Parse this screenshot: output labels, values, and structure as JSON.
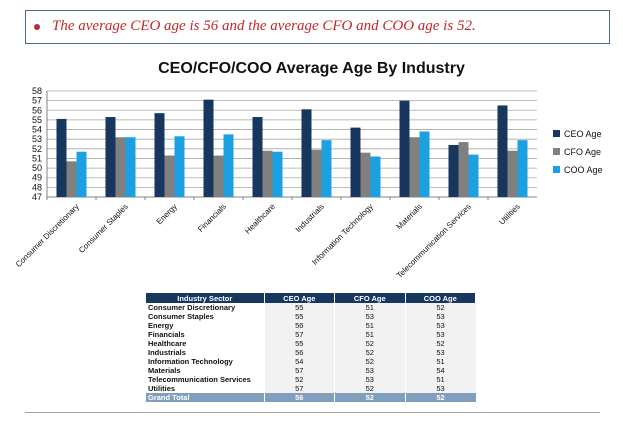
{
  "callout": {
    "text": "The average CEO age is 56 and the average CFO and COO age is 52."
  },
  "chart_data": {
    "type": "bar",
    "title": "CEO/CFO/COO Average Age By Industry",
    "categories": [
      "Consumer Discretionary",
      "Consumer Staples",
      "Energy",
      "Financials",
      "Healthcare",
      "Industrials",
      "Information Technology",
      "Materials",
      "Telecommunication Services",
      "Utilities"
    ],
    "series": [
      {
        "name": "CEO Age",
        "color": "#17375e",
        "values": [
          55.1,
          55.3,
          55.7,
          57.1,
          55.3,
          56.1,
          54.2,
          57.0,
          52.4,
          56.5
        ]
      },
      {
        "name": "CFO Age",
        "color": "#808080",
        "values": [
          50.7,
          53.2,
          51.3,
          51.3,
          51.8,
          51.9,
          51.6,
          53.2,
          52.7,
          51.8
        ]
      },
      {
        "name": "COO Age",
        "color": "#1ba1e2",
        "values": [
          51.7,
          53.2,
          53.3,
          53.5,
          51.7,
          52.9,
          51.2,
          53.8,
          51.4,
          52.9
        ]
      }
    ],
    "ylim": [
      47,
      58
    ],
    "yticks": [
      47,
      48,
      49,
      50,
      51,
      52,
      53,
      54,
      55,
      56,
      57,
      58
    ],
    "grid": true,
    "legend": "right"
  },
  "table": {
    "headers": [
      "Industry Sector",
      "CEO Age",
      "CFO Age",
      "COO Age"
    ],
    "rows": [
      [
        "Consumer Discretionary",
        "55",
        "51",
        "52"
      ],
      [
        "Consumer Staples",
        "55",
        "53",
        "53"
      ],
      [
        "Energy",
        "56",
        "51",
        "53"
      ],
      [
        "Financials",
        "57",
        "51",
        "53"
      ],
      [
        "Healthcare",
        "55",
        "52",
        "52"
      ],
      [
        "Industrials",
        "56",
        "52",
        "53"
      ],
      [
        "Information Technology",
        "54",
        "52",
        "51"
      ],
      [
        "Materials",
        "57",
        "53",
        "54"
      ],
      [
        "Telecommunication Services",
        "52",
        "53",
        "51"
      ],
      [
        "Utilities",
        "57",
        "52",
        "53"
      ]
    ],
    "total": [
      "Grand Total",
      "56",
      "52",
      "52"
    ]
  }
}
